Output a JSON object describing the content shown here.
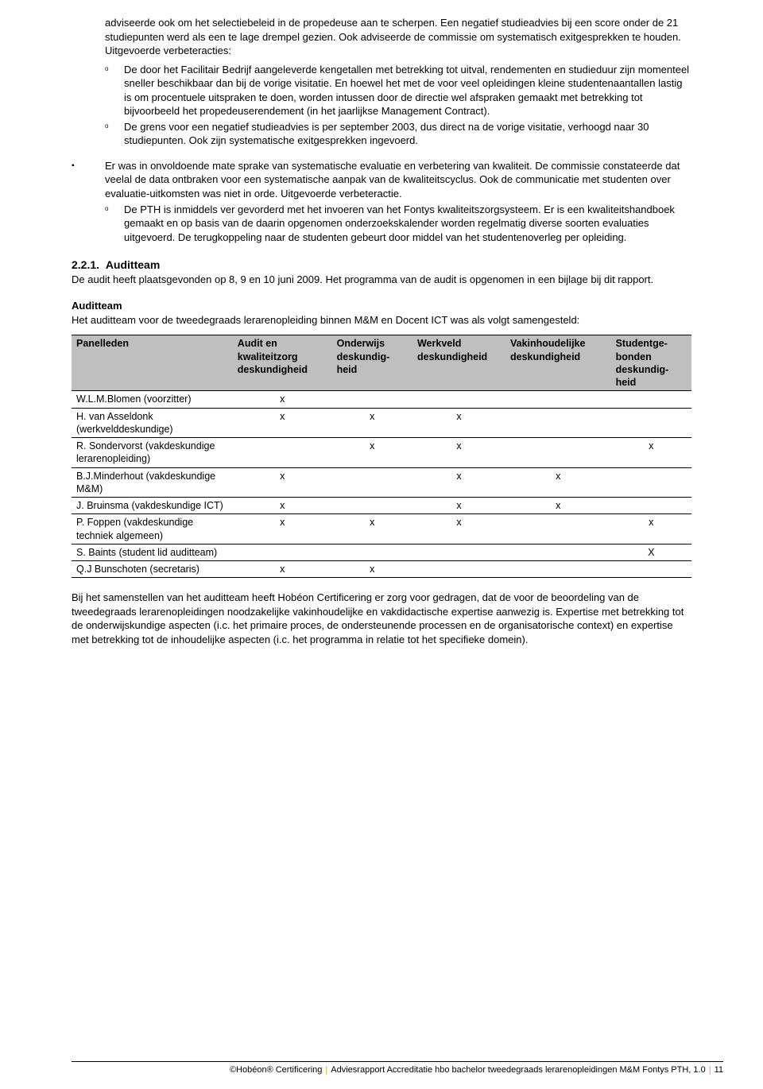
{
  "intro_text": "adviseerde ook om het selectiebeleid in de propedeuse aan te scherpen. Een negatief studieadvies bij een score onder de 21 studiepunten werd als een te lage drempel gezien. Ook adviseerde de commissie om systematisch exitgesprekken te houden. Uitgevoerde verbeteracties:",
  "sub1": "De door het Facilitair Bedrijf aangeleverde kengetallen met betrekking tot uitval, rendementen en studieduur zijn momenteel sneller beschikbaar dan bij de vorige visitatie. En hoewel het met de voor veel opleidingen kleine studentenaantallen lastig is om procentuele uitspraken te doen, worden intussen door de directie wel afspraken gemaakt met betrekking tot bijvoorbeeld het propedeuserendement (in het jaarlijkse Management Contract).",
  "sub2": "De grens voor een negatief studieadvies is per september 2003, dus direct na de vorige visitatie, verhoogd naar 30 studiepunten. Ook zijn systematische exitgesprekken ingevoerd.",
  "bullet2": "Er was in onvoldoende mate sprake van systematische evaluatie en verbetering van kwaliteit. De commissie constateerde dat veelal de data ontbraken voor een systematische aanpak van de kwaliteitscyclus. Ook de communicatie met studenten over evaluatie-uitkomsten was niet in orde. Uitgevoerde verbeteractie.",
  "sub3": "De PTH is inmiddels ver gevorderd met het invoeren van het Fontys kwaliteitszorgsysteem. Er is een kwaliteitshandboek gemaakt en op basis van de daarin opgenomen onderzoekskalender worden regelmatig diverse soorten evaluaties uitgevoerd. De terugkoppeling naar de studenten gebeurt door middel van het studentenoverleg per opleiding.",
  "heading_num": "2.2.1.",
  "heading_text": "Auditteam",
  "heading_para": "De audit heeft plaatsgevonden op 8, 9 en 10 juni 2009. Het programma van de audit is opgenomen in een bijlage bij dit rapport.",
  "subheading": "Auditteam",
  "subheading_para": "Het auditteam voor de tweedegraads lerarenopleiding binnen M&M en Docent ICT was als volgt samengesteld:",
  "table": {
    "columns": [
      "Panelleden",
      "Audit en kwaliteitzorg deskundigheid",
      "Onderwijs deskundig-heid",
      "Werkveld deskundigheid",
      "Vakinhoudelijke deskundigheid",
      "Studentge-bonden deskundig-heid"
    ],
    "col_widths": [
      "26%",
      "16%",
      "13%",
      "15%",
      "17%",
      "13%"
    ],
    "rows": [
      {
        "name": "W.L.M.Blomen (voorzitter)",
        "cells": [
          "x",
          "",
          "",
          "",
          ""
        ]
      },
      {
        "name": "H. van Asseldonk (werkvelddeskundige)",
        "cells": [
          "x",
          "x",
          "x",
          "",
          ""
        ]
      },
      {
        "name": "R. Sondervorst (vakdeskundige lerarenopleiding)",
        "cells": [
          "",
          "x",
          "x",
          "",
          "x"
        ]
      },
      {
        "name": "B.J.Minderhout (vakdeskundige M&M)",
        "cells": [
          "x",
          "",
          "x",
          "x",
          ""
        ]
      },
      {
        "name": "J. Bruinsma (vakdeskundige ICT)",
        "cells": [
          "x",
          "",
          "x",
          "x",
          ""
        ]
      },
      {
        "name": "P. Foppen (vakdeskundige techniek algemeen)",
        "cells": [
          "x",
          "x",
          "x",
          "",
          "x"
        ]
      },
      {
        "name": "S. Baints (student lid auditteam)",
        "cells": [
          "",
          "",
          "",
          "",
          "X"
        ]
      },
      {
        "name": "Q.J Bunschoten (secretaris)",
        "cells": [
          "x",
          "x",
          "",
          "",
          ""
        ]
      }
    ]
  },
  "closing_para": "Bij het samenstellen van het auditteam heeft Hobéon Certificering er zorg voor gedragen, dat de voor de beoordeling van de tweedegraads lerarenopleidingen noodzakelijke vakinhoudelijke en vakdidactische expertise aanwezig is. Expertise met betrekking tot de onderwijskundige aspecten (i.c. het primaire proces, de ondersteunende processen en de organisatorische context) en expertise met betrekking tot de inhoudelijke aspecten (i.c. het programma in relatie tot het specifieke domein).",
  "footer_left": "©Hobéon® Certificering",
  "footer_mid": "Adviesrapport Accreditatie hbo bachelor  tweedegraads lerarenopleidingen M&M Fontys PTH, 1.0",
  "footer_page": "11"
}
